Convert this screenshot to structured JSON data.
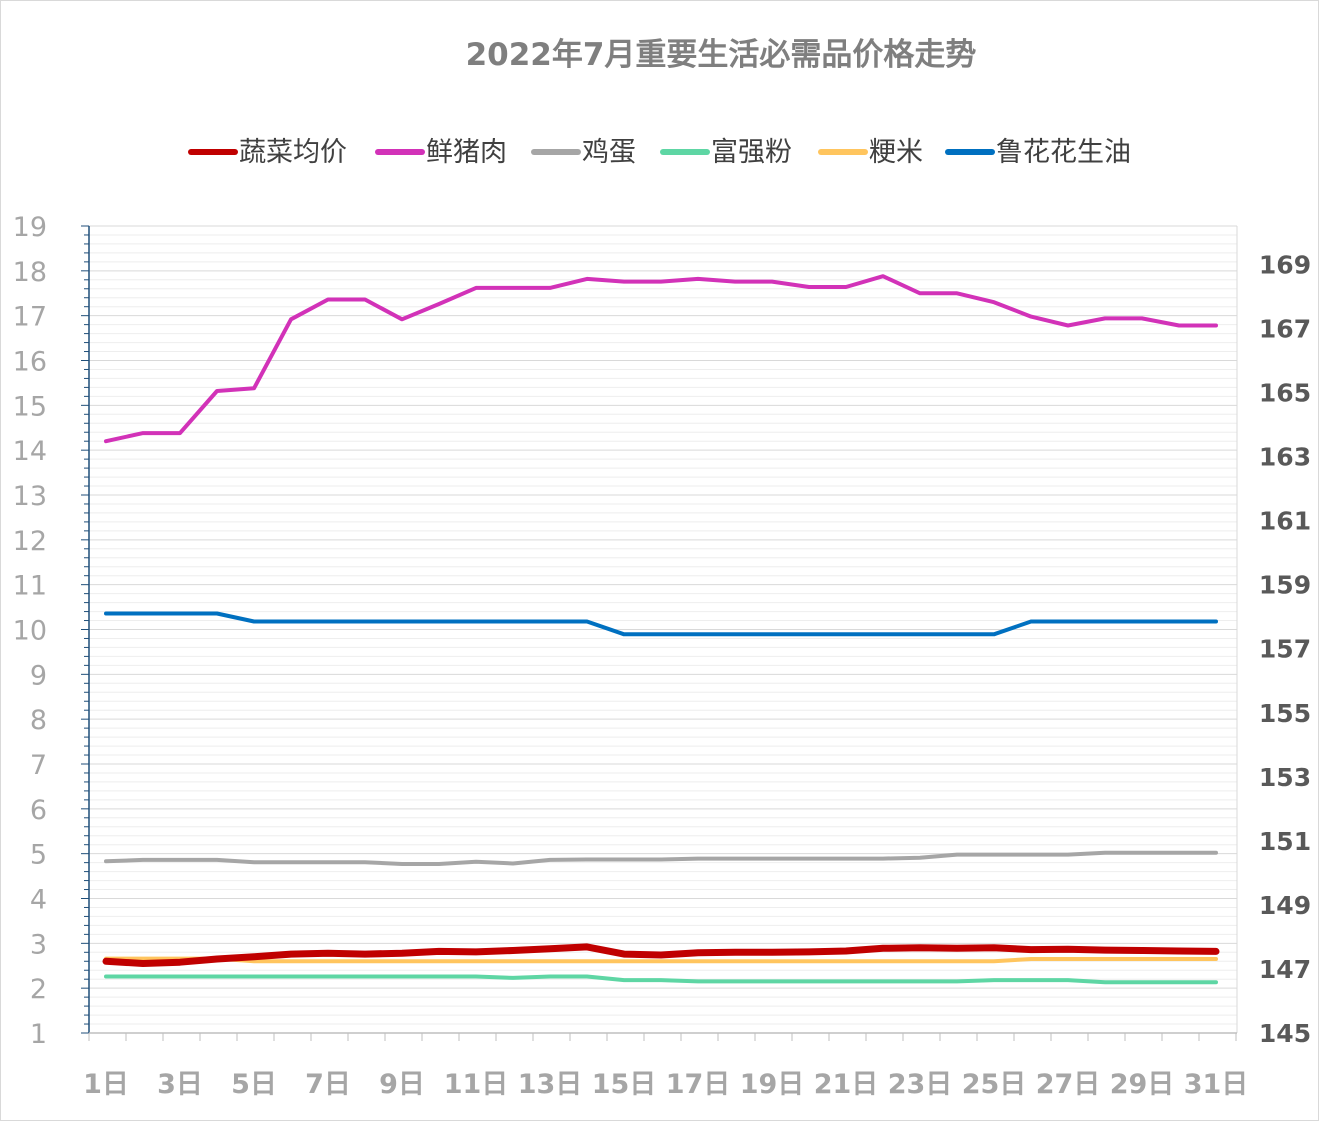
{
  "chart_data": {
    "type": "line",
    "title": "2022年7月重要生活必需品价格走势",
    "legend_position": "top",
    "grid": true,
    "y_left": {
      "range": [
        1,
        19
      ],
      "ticks": [
        "1",
        "2",
        "3",
        "4",
        "5",
        "6",
        "7",
        "8",
        "9",
        "10",
        "11",
        "12",
        "13",
        "14",
        "15",
        "16",
        "17",
        "18",
        "19"
      ]
    },
    "y_right": {
      "range": [
        145,
        170.2
      ],
      "ticks": [
        "145",
        "147",
        "149",
        "151",
        "153",
        "155",
        "157",
        "159",
        "161",
        "163",
        "165",
        "167",
        "169"
      ]
    },
    "x": [
      "1日",
      "2日",
      "3日",
      "4日",
      "5日",
      "6日",
      "7日",
      "8日",
      "9日",
      "10日",
      "11日",
      "12日",
      "13日",
      "14日",
      "15日",
      "16日",
      "17日",
      "18日",
      "19日",
      "20日",
      "21日",
      "22日",
      "23日",
      "24日",
      "25日",
      "26日",
      "27日",
      "28日",
      "29日",
      "30日",
      "31日"
    ],
    "x_tick_labels": [
      "1日",
      "3日",
      "5日",
      "7日",
      "9日",
      "11日",
      "13日",
      "15日",
      "17日",
      "19日",
      "21日",
      "23日",
      "25日",
      "27日",
      "29日",
      "31日"
    ],
    "series": [
      {
        "name": "蔬菜均价",
        "color": "#c00000",
        "axis": "left",
        "width": 7,
        "values": [
          2.6,
          2.55,
          2.58,
          2.65,
          2.7,
          2.76,
          2.78,
          2.76,
          2.78,
          2.82,
          2.81,
          2.84,
          2.88,
          2.92,
          2.76,
          2.74,
          2.79,
          2.8,
          2.8,
          2.81,
          2.83,
          2.89,
          2.9,
          2.89,
          2.9,
          2.86,
          2.87,
          2.85,
          2.84,
          2.83,
          2.82
        ]
      },
      {
        "name": "鲜猪肉",
        "color": "#d232b8",
        "axis": "left",
        "width": 4,
        "values": [
          14.2,
          14.38,
          14.38,
          15.32,
          15.38,
          16.92,
          17.36,
          17.36,
          16.92,
          17.26,
          17.62,
          17.62,
          17.62,
          17.82,
          17.76,
          17.76,
          17.82,
          17.76,
          17.76,
          17.64,
          17.64,
          17.88,
          17.5,
          17.5,
          17.3,
          16.98,
          16.78,
          16.94,
          16.94,
          16.78,
          16.78
        ]
      },
      {
        "name": "鸡蛋",
        "color": "#a6a6a6",
        "axis": "left",
        "width": 4,
        "values": [
          4.83,
          4.86,
          4.86,
          4.86,
          4.81,
          4.81,
          4.81,
          4.81,
          4.77,
          4.77,
          4.82,
          4.78,
          4.86,
          4.87,
          4.87,
          4.87,
          4.89,
          4.89,
          4.89,
          4.89,
          4.89,
          4.89,
          4.91,
          4.98,
          4.98,
          4.98,
          4.98,
          5.02,
          5.02,
          5.02,
          5.02
        ]
      },
      {
        "name": "富强粉",
        "color": "#5ed6a4",
        "axis": "left",
        "width": 4,
        "values": [
          2.26,
          2.26,
          2.26,
          2.26,
          2.26,
          2.26,
          2.26,
          2.26,
          2.26,
          2.26,
          2.26,
          2.23,
          2.26,
          2.26,
          2.18,
          2.18,
          2.15,
          2.15,
          2.15,
          2.15,
          2.15,
          2.15,
          2.15,
          2.15,
          2.18,
          2.18,
          2.18,
          2.13,
          2.13,
          2.13,
          2.13
        ]
      },
      {
        "name": "粳米",
        "color": "#ffc55e",
        "axis": "left",
        "width": 4,
        "values": [
          2.66,
          2.66,
          2.66,
          2.66,
          2.6,
          2.6,
          2.6,
          2.6,
          2.6,
          2.6,
          2.6,
          2.6,
          2.6,
          2.6,
          2.6,
          2.6,
          2.6,
          2.6,
          2.6,
          2.6,
          2.6,
          2.6,
          2.6,
          2.6,
          2.6,
          2.65,
          2.65,
          2.65,
          2.65,
          2.65,
          2.65
        ]
      },
      {
        "name": "鲁花花生油",
        "color": "#0070c0",
        "axis": "right",
        "width": 4,
        "values": [
          158.1,
          158.1,
          158.1,
          158.1,
          157.85,
          157.85,
          157.85,
          157.85,
          157.85,
          157.85,
          157.85,
          157.85,
          157.85,
          157.85,
          157.45,
          157.45,
          157.45,
          157.45,
          157.45,
          157.45,
          157.45,
          157.45,
          157.45,
          157.45,
          157.45,
          157.85,
          157.85,
          157.85,
          157.85,
          157.85,
          157.85
        ]
      }
    ]
  }
}
